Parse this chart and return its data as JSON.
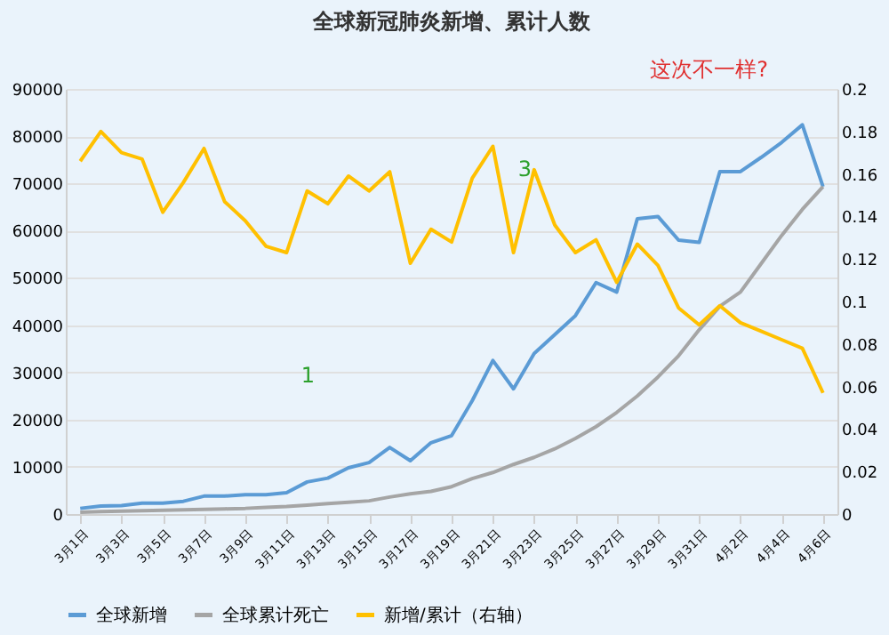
{
  "chart_data": {
    "type": "line",
    "title": "全球新冠肺炎新增、累计人数",
    "categories": [
      "3月1日",
      null,
      "3月3日",
      null,
      "3月5日",
      null,
      "3月7日",
      null,
      "3月9日",
      null,
      "3月11日",
      null,
      "3月13日",
      null,
      "3月15日",
      null,
      "3月17日",
      null,
      "3月19日",
      null,
      "3月21日",
      null,
      "3月23日",
      null,
      "3月25日",
      null,
      "3月27日",
      null,
      "3月29日",
      null,
      "3月31日",
      null,
      "4月2日",
      null,
      "4月4日",
      null,
      "4月6日"
    ],
    "series": [
      {
        "name": "全球新增",
        "color": "#5b9bd5",
        "values": [
          1200,
          1700,
          1800,
          2300,
          2300,
          2700,
          3800,
          3800,
          4100,
          4100,
          4500,
          6800,
          7600,
          9800,
          10900,
          14100,
          11300,
          15100,
          16600,
          24000,
          32500,
          26500,
          34000,
          38000,
          42000,
          49000,
          47000,
          62500,
          63000,
          58000,
          57500,
          72500,
          72500,
          75500,
          78700,
          82400,
          69300
        ]
      },
      {
        "name": "全球累计死亡",
        "color": "#a5a5a5",
        "values": [
          400,
          500,
          600,
          700,
          800,
          900,
          1000,
          1100,
          1200,
          1400,
          1600,
          1900,
          2200,
          2500,
          2800,
          3600,
          4300,
          4800,
          5800,
          7500,
          8800,
          10500,
          12000,
          13800,
          16000,
          18500,
          21500,
          25000,
          29000,
          33500,
          39000,
          44000,
          47000,
          53000,
          59000,
          64500,
          69300
        ]
      },
      {
        "name": "新增/累计（右轴）",
        "color": "#ffc000",
        "axis": "y2",
        "values": [
          0.166,
          0.18,
          0.17,
          0.167,
          0.142,
          0.156,
          0.172,
          0.147,
          0.138,
          0.126,
          0.123,
          0.152,
          0.146,
          0.159,
          0.152,
          0.161,
          0.118,
          0.134,
          0.128,
          0.158,
          0.173,
          0.123,
          0.162,
          0.136,
          0.123,
          0.129,
          0.109,
          0.127,
          0.117,
          0.097,
          0.089,
          0.098,
          0.09,
          0.086,
          0.082,
          0.078,
          0.057
        ]
      }
    ],
    "ylim": [
      0,
      90000
    ],
    "yticks": [
      0,
      10000,
      20000,
      30000,
      40000,
      50000,
      60000,
      70000,
      80000,
      90000
    ],
    "y2lim": [
      0,
      0.2
    ],
    "y2ticks": [
      0,
      0.02,
      0.04,
      0.06,
      0.08,
      0.1,
      0.12,
      0.14,
      0.16,
      0.18,
      0.2
    ],
    "grid": "y",
    "legend": "bottom",
    "marker": "none",
    "line_style": "solid",
    "annotations": [
      "1",
      "3",
      "这次不一样?"
    ]
  }
}
